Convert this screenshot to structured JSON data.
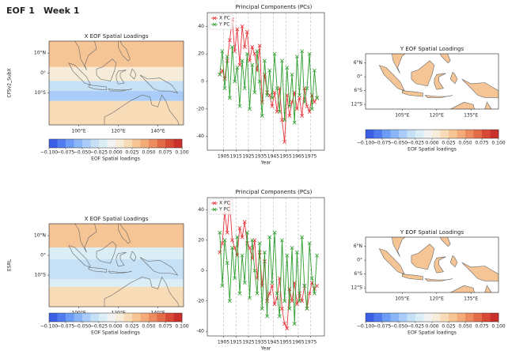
{
  "header": {
    "title": "EOF 1",
    "subtitle": "Week 1"
  },
  "chart_data": [
    {
      "type": "map",
      "title": "X EOF Spatial Loadings",
      "ylabel": "CFSv2_SubX",
      "xlim": [
        85,
        153
      ],
      "ylim": [
        -26,
        16
      ],
      "xticks": [
        {
          "value": 100,
          "label": "100°E"
        },
        {
          "value": 120,
          "label": "120°E"
        },
        {
          "value": 140,
          "label": "140°E"
        }
      ],
      "yticks": [
        {
          "value": 10,
          "label": "10°N"
        },
        {
          "value": 0,
          "label": "0°"
        },
        {
          "value": -10,
          "label": "10°S"
        }
      ],
      "colorbar": {
        "label": "EOF Spatial loadings",
        "lim": [
          -0.1,
          0.1
        ],
        "ticks": [
          {
            "value": -0.1,
            "label": "−0.100"
          },
          {
            "value": -0.075,
            "label": "−0.075"
          },
          {
            "value": -0.05,
            "label": "−0.050"
          },
          {
            "value": -0.025,
            "label": "−0.025"
          },
          {
            "value": 0,
            "label": "0.000"
          },
          {
            "value": 0.025,
            "label": "0.025"
          },
          {
            "value": 0.05,
            "label": "0.050"
          },
          {
            "value": 0.075,
            "label": "0.075"
          },
          {
            "value": 0.1,
            "label": "0.100"
          }
        ],
        "colors": [
          "#3a5ee6",
          "#4f7df0",
          "#6c9cf5",
          "#8ab6f8",
          "#a9cdf8",
          "#c6e0f6",
          "#dceef5",
          "#f2f2f2",
          "#f7ecd9",
          "#f8dcb8",
          "#f6c596",
          "#f2aa78",
          "#ec8c5e",
          "#e26b48",
          "#d74a36",
          "#c9302c"
        ]
      }
    },
    {
      "type": "line",
      "title": "Principal Components (PCs)",
      "xlabel": "Year",
      "x": [
        1902,
        1904,
        1906,
        1908,
        1910,
        1912,
        1914,
        1916,
        1918,
        1920,
        1922,
        1924,
        1926,
        1928,
        1930,
        1932,
        1934,
        1936,
        1938,
        1940,
        1942,
        1944,
        1946,
        1948,
        1950,
        1952,
        1954,
        1956,
        1958,
        1960,
        1962,
        1964,
        1966,
        1968,
        1970,
        1972,
        1974,
        1976,
        1978,
        1980
      ],
      "xlim": [
        1892,
        1986
      ],
      "ylim": [
        -50,
        50
      ],
      "xticks": [
        1905,
        1915,
        1925,
        1935,
        1945,
        1955,
        1965,
        1975
      ],
      "yticks": [
        -40,
        -20,
        0,
        20,
        40
      ],
      "grid": "x",
      "legend": "upper left",
      "series": [
        {
          "name": "X PC",
          "color": "#e8353b",
          "values": [
            5,
            8,
            2,
            15,
            30,
            45,
            22,
            38,
            12,
            40,
            25,
            36,
            15,
            25,
            20,
            8,
            26,
            -15,
            5,
            -8,
            -10,
            -18,
            -8,
            -22,
            -5,
            -28,
            -44,
            -10,
            -25,
            -15,
            -8,
            -20,
            -12,
            -25,
            -5,
            -18,
            -22,
            -10,
            -15,
            -12
          ]
        },
        {
          "name": "Y PC",
          "color": "#2e9e2e",
          "values": [
            5,
            22,
            -5,
            18,
            -12,
            25,
            0,
            10,
            -18,
            15,
            -5,
            20,
            -20,
            12,
            -8,
            22,
            0,
            -25,
            15,
            -10,
            8,
            -12,
            20,
            -5,
            -22,
            15,
            -28,
            10,
            -18,
            5,
            -30,
            18,
            -10,
            22,
            -15,
            -5,
            20,
            -20,
            8,
            -12
          ]
        }
      ]
    },
    {
      "type": "map",
      "title": "Y EOF Spatial Loadings",
      "xlim": [
        89,
        147
      ],
      "ylim": [
        -14,
        10
      ],
      "xticks": [
        {
          "value": 105,
          "label": "105°E"
        },
        {
          "value": 120,
          "label": "120°E"
        },
        {
          "value": 135,
          "label": "135°E"
        }
      ],
      "yticks": [
        {
          "value": 6,
          "label": "6°N"
        },
        {
          "value": 0,
          "label": "0°"
        },
        {
          "value": -6,
          "label": "6°S"
        },
        {
          "value": -12,
          "label": "12°S"
        }
      ],
      "colorbar": {
        "label": "EOF Spatial loadings",
        "lim": [
          -0.1,
          0.1
        ],
        "ticks": [
          {
            "value": -0.1,
            "label": "−0.100"
          },
          {
            "value": -0.075,
            "label": "−0.075"
          },
          {
            "value": -0.05,
            "label": "−0.050"
          },
          {
            "value": -0.025,
            "label": "−0.025"
          },
          {
            "value": 0,
            "label": "0.000"
          },
          {
            "value": 0.025,
            "label": "0.025"
          },
          {
            "value": 0.05,
            "label": "0.050"
          },
          {
            "value": 0.075,
            "label": "0.075"
          },
          {
            "value": 0.1,
            "label": "0.100"
          }
        ],
        "colors": [
          "#3a5ee6",
          "#4f7df0",
          "#6c9cf5",
          "#8ab6f8",
          "#a9cdf8",
          "#c6e0f6",
          "#dceef5",
          "#f2f2f2",
          "#f7ecd9",
          "#f8dcb8",
          "#f6c596",
          "#f2aa78",
          "#ec8c5e",
          "#e26b48",
          "#d74a36",
          "#c9302c"
        ]
      }
    },
    {
      "type": "map",
      "title": "X EOF Spatial Loadings",
      "ylabel": "ESRL",
      "xlim": [
        85,
        153
      ],
      "ylim": [
        -26,
        16
      ],
      "xticks": [
        {
          "value": 100,
          "label": "100°E"
        },
        {
          "value": 120,
          "label": "120°E"
        },
        {
          "value": 140,
          "label": "140°E"
        }
      ],
      "yticks": [
        {
          "value": 10,
          "label": "10°N"
        },
        {
          "value": 0,
          "label": "0°"
        },
        {
          "value": -10,
          "label": "10°S"
        }
      ],
      "colorbar": {
        "label": "EOF Spatial loadings",
        "lim": [
          -0.1,
          0.1
        ],
        "ticks": [
          {
            "value": -0.1,
            "label": "−0.100"
          },
          {
            "value": -0.075,
            "label": "−0.075"
          },
          {
            "value": -0.05,
            "label": "−0.050"
          },
          {
            "value": -0.025,
            "label": "−0.025"
          },
          {
            "value": 0,
            "label": "0.000"
          },
          {
            "value": 0.025,
            "label": "0.025"
          },
          {
            "value": 0.05,
            "label": "0.050"
          },
          {
            "value": 0.075,
            "label": "0.075"
          },
          {
            "value": 0.1,
            "label": "0.100"
          }
        ],
        "colors": [
          "#3a5ee6",
          "#4f7df0",
          "#6c9cf5",
          "#8ab6f8",
          "#a9cdf8",
          "#c6e0f6",
          "#dceef5",
          "#f2f2f2",
          "#f7ecd9",
          "#f8dcb8",
          "#f6c596",
          "#f2aa78",
          "#ec8c5e",
          "#e26b48",
          "#d74a36",
          "#c9302c"
        ]
      }
    },
    {
      "type": "line",
      "title": "Principal Components (PCs)",
      "xlabel": "Year",
      "x": [
        1902,
        1904,
        1906,
        1908,
        1910,
        1912,
        1914,
        1916,
        1918,
        1920,
        1922,
        1924,
        1926,
        1928,
        1930,
        1932,
        1934,
        1936,
        1938,
        1940,
        1942,
        1944,
        1946,
        1948,
        1950,
        1952,
        1954,
        1956,
        1958,
        1960,
        1962,
        1964,
        1966,
        1968,
        1970,
        1972,
        1974,
        1976,
        1978,
        1980
      ],
      "xlim": [
        1892,
        1986
      ],
      "ylim": [
        -43,
        48
      ],
      "xticks": [
        1905,
        1915,
        1925,
        1935,
        1945,
        1955,
        1965,
        1975
      ],
      "yticks": [
        -40,
        -20,
        0,
        20,
        40
      ],
      "grid": "x",
      "legend": "upper left",
      "series": [
        {
          "name": "X PC",
          "color": "#e8353b",
          "values": [
            12,
            18,
            38,
            25,
            45,
            20,
            15,
            10,
            28,
            22,
            32,
            18,
            15,
            8,
            20,
            -5,
            12,
            -10,
            6,
            -20,
            -15,
            -10,
            -22,
            -18,
            -5,
            -25,
            -35,
            -38,
            -12,
            -20,
            -8,
            -22,
            -15,
            -20,
            -10,
            -25,
            -15,
            -8,
            -12,
            -10
          ]
        },
        {
          "name": "Y PC",
          "color": "#2e9e2e",
          "values": [
            25,
            -10,
            20,
            5,
            -20,
            15,
            -5,
            22,
            -15,
            10,
            -8,
            25,
            -18,
            20,
            0,
            -15,
            18,
            -25,
            12,
            -30,
            22,
            -8,
            25,
            -15,
            -30,
            20,
            -20,
            10,
            -25,
            15,
            -35,
            12,
            -20,
            22,
            -10,
            -25,
            18,
            -5,
            -15,
            10
          ]
        }
      ]
    },
    {
      "type": "map",
      "title": "Y EOF Spatial Loadings",
      "xlim": [
        89,
        147
      ],
      "ylim": [
        -14,
        10
      ],
      "xticks": [
        {
          "value": 105,
          "label": "105°E"
        },
        {
          "value": 120,
          "label": "120°E"
        },
        {
          "value": 135,
          "label": "135°E"
        }
      ],
      "yticks": [
        {
          "value": 6,
          "label": "6°N"
        },
        {
          "value": 0,
          "label": "0°"
        },
        {
          "value": -6,
          "label": "6°S"
        },
        {
          "value": -12,
          "label": "12°S"
        }
      ],
      "colorbar": {
        "label": "EOF Spatial loadings",
        "lim": [
          -0.1,
          0.1
        ],
        "ticks": [
          {
            "value": -0.1,
            "label": "−0.100"
          },
          {
            "value": -0.075,
            "label": "−0.075"
          },
          {
            "value": -0.05,
            "label": "−0.050"
          },
          {
            "value": -0.025,
            "label": "−0.025"
          },
          {
            "value": 0,
            "label": "0.000"
          },
          {
            "value": 0.025,
            "label": "0.025"
          },
          {
            "value": 0.05,
            "label": "0.050"
          },
          {
            "value": 0.075,
            "label": "0.075"
          },
          {
            "value": 0.1,
            "label": "0.100"
          }
        ],
        "colors": [
          "#3a5ee6",
          "#4f7df0",
          "#6c9cf5",
          "#8ab6f8",
          "#a9cdf8",
          "#c6e0f6",
          "#dceef5",
          "#f2f2f2",
          "#f7ecd9",
          "#f8dcb8",
          "#f6c596",
          "#f2aa78",
          "#ec8c5e",
          "#e26b48",
          "#d74a36",
          "#c9302c"
        ]
      }
    }
  ]
}
